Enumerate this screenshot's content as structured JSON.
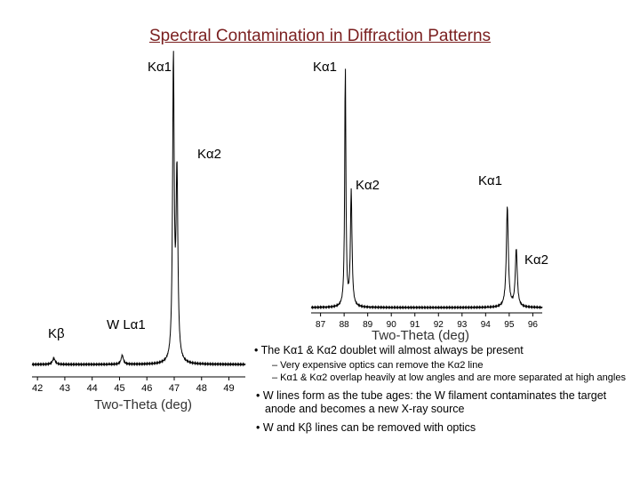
{
  "title": "Spectral Contamination in Diffraction Patterns",
  "chart_data": [
    {
      "type": "line",
      "name_id": "left-pattern",
      "xlabel": "Two-Theta (deg)",
      "xlim": [
        41.8,
        49.6
      ],
      "ticks": [
        "42",
        "43",
        "44",
        "45",
        "46",
        "47",
        "48",
        "49"
      ],
      "annotations": [
        {
          "text": "Kα1",
          "x": 46.9
        },
        {
          "text": "Kα2",
          "x": 47.2
        },
        {
          "text": "Kβ",
          "x": 41.0
        },
        {
          "text": "W Lα1",
          "x": 45.4
        }
      ],
      "peaks": [
        {
          "x": 42.6,
          "height": 0.02,
          "width": 0.06
        },
        {
          "x": 45.1,
          "height": 0.03,
          "width": 0.05
        },
        {
          "x": 46.97,
          "height": 1.0,
          "width": 0.035
        },
        {
          "x": 47.1,
          "height": 0.62,
          "width": 0.04
        }
      ]
    },
    {
      "type": "line",
      "name_id": "right-pattern",
      "xlabel": "Two-Theta (deg)",
      "xlim": [
        86.6,
        96.4
      ],
      "ticks": [
        "87",
        "88",
        "89",
        "90",
        "91",
        "92",
        "93",
        "94",
        "95",
        "96"
      ],
      "annotations": [
        {
          "text": "Kα1",
          "x": 88.1
        },
        {
          "text": "Kα2",
          "x": 88.3
        },
        {
          "text": "Kα1",
          "x": 94.9
        },
        {
          "text": "Kα2",
          "x": 95.2
        }
      ],
      "peaks": [
        {
          "x": 88.05,
          "height": 1.0,
          "width": 0.03
        },
        {
          "x": 88.3,
          "height": 0.48,
          "width": 0.04
        },
        {
          "x": 94.92,
          "height": 0.42,
          "width": 0.05
        },
        {
          "x": 95.3,
          "height": 0.24,
          "width": 0.05
        }
      ]
    }
  ],
  "notes": {
    "bullet1": "• The Kα1 & Kα2 doublet will almost always be present",
    "sub1": "– Very expensive optics can remove the Kα2 line",
    "sub2": "– Kα1 & Kα2 overlap heavily at low angles and are more separated at high angles",
    "bullet2": "• W lines form as the tube ages: the W filament contaminates the target anode and becomes a new X-ray source",
    "bullet3": "• W and Kβ lines can be removed with optics"
  }
}
